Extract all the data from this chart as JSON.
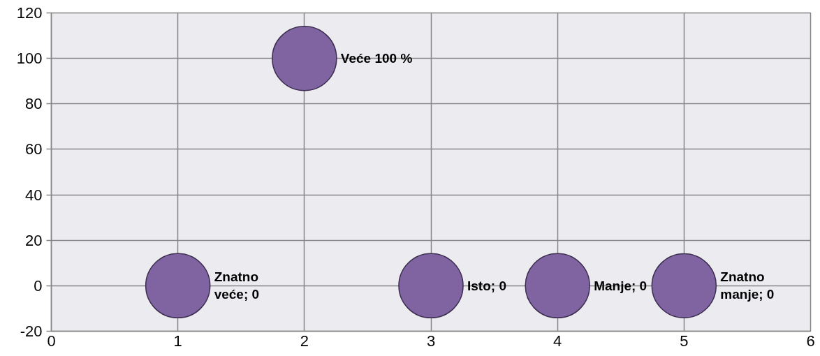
{
  "chart_data": {
    "type": "bubble",
    "x": [
      1,
      2,
      3,
      4,
      5
    ],
    "series": [
      {
        "color": "#8064a2",
        "values": [
          0,
          100,
          0,
          0,
          0
        ],
        "sizes": [
          1,
          1,
          1,
          1,
          1
        ],
        "value_labels": [
          "Znatno veće; 0",
          "Veće 100 %",
          "Isto; 0",
          "Manje; 0",
          "Znatno manje; 0"
        ]
      }
    ],
    "xlim": [
      0,
      6
    ],
    "xticks": [
      0,
      1,
      2,
      3,
      4,
      5,
      6
    ],
    "ylim": [
      -20,
      120
    ],
    "yticks": [
      -20,
      0,
      20,
      40,
      60,
      80,
      100,
      120
    ],
    "grid": true
  }
}
